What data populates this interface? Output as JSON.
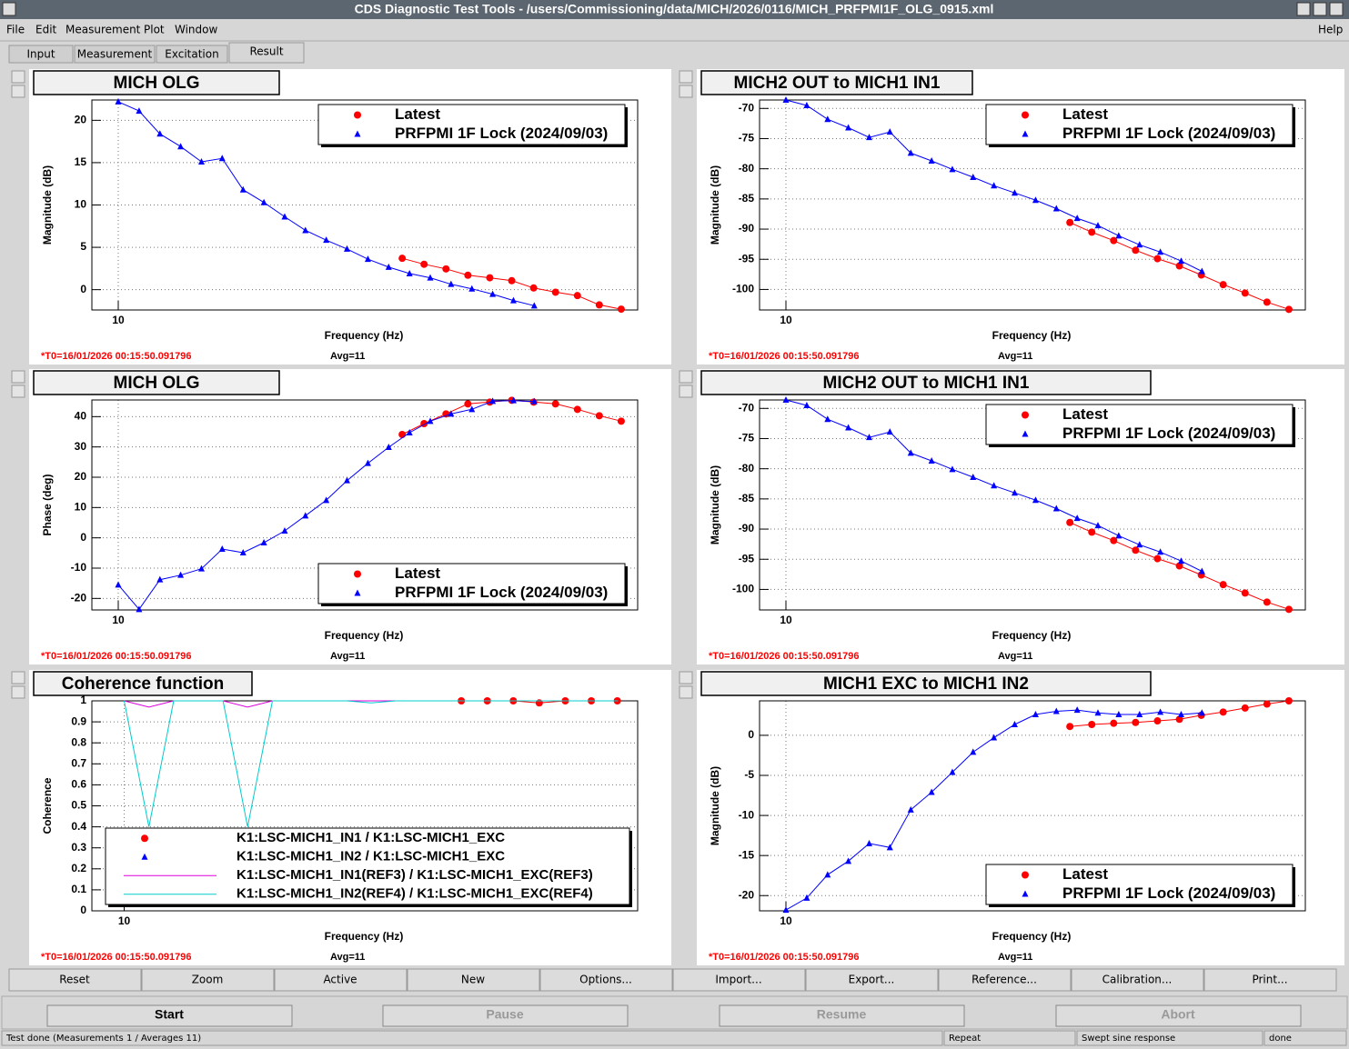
{
  "window": {
    "title": "CDS Diagnostic Test Tools - /users/Commissioning/data/MICH/2026/0116/MICH_PRFPMI1F_OLG_0915.xml",
    "menu": [
      "File",
      "Edit",
      "Measurement",
      "Plot",
      "Window"
    ],
    "help": "Help",
    "tabs": [
      "Input",
      "Measurement",
      "Excitation",
      "Result"
    ],
    "active_tab": "Result",
    "buttons": [
      "Reset",
      "Zoom",
      "Active",
      "New",
      "Options...",
      "Import...",
      "Export...",
      "Reference...",
      "Calibration...",
      "Print..."
    ],
    "run_buttons": [
      {
        "label": "Start",
        "enabled": true
      },
      {
        "label": "Pause",
        "enabled": false
      },
      {
        "label": "Resume",
        "enabled": false
      },
      {
        "label": "Abort",
        "enabled": false
      }
    ],
    "status": [
      "Test done (Measurements 1 / Averages 11)",
      "Repeat",
      "Swept sine response",
      "done"
    ]
  },
  "chart_data": [
    {
      "type": "line",
      "title": "MICH OLG",
      "ylabel": "Magnitude (dB)",
      "xlabel": "Frequency (Hz)",
      "log_x": true,
      "xlim": [
        9.03,
        74.6
      ],
      "xticks": [
        10
      ],
      "ylim": [
        -2.4,
        22.4
      ],
      "yticks": [
        0,
        5,
        10,
        15,
        20
      ],
      "grid": true,
      "legend": "upper right",
      "t0": "*T0=16/01/2026 00:15:50.091796",
      "avg": "Avg=11",
      "series": [
        {
          "name": "Latest",
          "color": "#ff0000",
          "marker": "circle",
          "x": [
            30,
            32.65,
            35.54,
            38.68,
            42.1,
            45.83,
            49.88,
            54.29,
            59.09,
            64.31,
            70
          ],
          "values": [
            3.7,
            3.0,
            2.45,
            1.7,
            1.4,
            1.06,
            0.2,
            -0.3,
            -0.7,
            -1.8,
            -2.3
          ]
        },
        {
          "name": "PRFPMI 1F Lock (2024/09/03)",
          "color": "#0000ff",
          "marker": "triangle",
          "x": [
            10,
            10.84,
            11.75,
            12.73,
            13.8,
            14.95,
            16.21,
            17.57,
            19.04,
            20.63,
            22.36,
            24.23,
            26.27,
            28.47,
            30.86,
            33.44,
            36.24,
            39.28,
            42.57,
            46.14,
            50
          ],
          "values": [
            22.2,
            21.1,
            18.4,
            16.9,
            15.1,
            15.5,
            11.8,
            10.3,
            8.6,
            7.0,
            5.85,
            4.8,
            3.6,
            2.66,
            1.9,
            1.4,
            0.64,
            0.1,
            -0.53,
            -1.28,
            -1.9
          ]
        }
      ]
    },
    {
      "type": "line",
      "title": "MICH2 OUT to MICH1 IN1",
      "ylabel": "Magnitude (dB)",
      "xlabel": "Frequency (Hz)",
      "log_x": true,
      "xlim": [
        9.03,
        74.6
      ],
      "xticks": [
        10
      ],
      "ylim": [
        -103.4,
        -68.6
      ],
      "yticks": [
        -70,
        -75,
        -80,
        -85,
        -90,
        -95,
        -100
      ],
      "grid": true,
      "legend": "upper right",
      "t0": "*T0=16/01/2026 00:15:50.091796",
      "avg": "Avg=11",
      "series": [
        {
          "name": "Latest",
          "color": "#ff0000",
          "marker": "circle",
          "x": [
            30,
            32.65,
            35.54,
            38.68,
            42.1,
            45.83,
            49.88,
            54.29,
            59.09,
            64.31,
            70
          ],
          "values": [
            -88.9,
            -90.5,
            -91.9,
            -93.5,
            -94.9,
            -96.1,
            -97.6,
            -99.2,
            -100.6,
            -102.1,
            -103.3
          ]
        },
        {
          "name": "PRFPMI 1F Lock (2024/09/03)",
          "color": "#0000ff",
          "marker": "triangle",
          "x": [
            10,
            10.84,
            11.75,
            12.73,
            13.8,
            14.95,
            16.21,
            17.57,
            19.04,
            20.63,
            22.36,
            24.23,
            26.27,
            28.47,
            30.86,
            33.44,
            36.24,
            39.28,
            42.57,
            46.14,
            50
          ],
          "values": [
            -68.6,
            -69.5,
            -71.8,
            -73.2,
            -74.8,
            -73.9,
            -77.4,
            -78.7,
            -80.1,
            -81.4,
            -82.8,
            -84.0,
            -85.2,
            -86.6,
            -88.2,
            -89.4,
            -91.1,
            -92.6,
            -93.8,
            -95.3,
            -97.0
          ]
        }
      ]
    },
    {
      "type": "line",
      "title": "MICH OLG",
      "ylabel": "Phase (deg)",
      "xlabel": "Frequency (Hz)",
      "log_x": true,
      "xlim": [
        9.03,
        74.6
      ],
      "xticks": [
        10
      ],
      "ylim": [
        -23.8,
        45.5
      ],
      "yticks": [
        -20,
        -10,
        0,
        10,
        20,
        30,
        40
      ],
      "grid": true,
      "legend": "lower right",
      "t0": "*T0=16/01/2026 00:15:50.091796",
      "avg": "Avg=11",
      "series": [
        {
          "name": "Latest",
          "color": "#ff0000",
          "marker": "circle",
          "x": [
            30,
            32.65,
            35.54,
            38.68,
            42.1,
            45.83,
            49.88,
            54.29,
            59.09,
            64.31,
            70
          ],
          "values": [
            34.1,
            37.7,
            40.9,
            44.2,
            44.8,
            45.4,
            44.8,
            44.2,
            42.4,
            40.3,
            38.5
          ]
        },
        {
          "name": "PRFPMI 1F Lock (2024/09/03)",
          "color": "#0000ff",
          "marker": "triangle",
          "x": [
            10,
            10.84,
            11.75,
            12.73,
            13.8,
            14.95,
            16.21,
            17.57,
            19.04,
            20.63,
            22.36,
            24.23,
            26.27,
            28.47,
            30.86,
            33.44,
            36.24,
            39.28,
            42.57,
            46.14,
            50
          ],
          "values": [
            -15.5,
            -23.6,
            -13.8,
            -12.3,
            -10.2,
            -3.7,
            -4.9,
            -1.6,
            2.3,
            7.3,
            12.4,
            18.9,
            24.6,
            29.9,
            34.7,
            38.5,
            40.9,
            42.4,
            45.1,
            45.3,
            45.0
          ]
        }
      ]
    },
    {
      "type": "line",
      "title": "MICH2 OUT to MICH1 IN1",
      "ylabel": "Magnitude (dB)",
      "xlabel": "Frequency (Hz)",
      "log_x": true,
      "xlim": [
        9.03,
        74.6
      ],
      "xticks": [
        10
      ],
      "ylim": [
        -103.4,
        -68.6
      ],
      "yticks": [
        -70,
        -75,
        -80,
        -85,
        -90,
        -95,
        -100
      ],
      "grid": true,
      "legend": "upper right",
      "t0": "*T0=16/01/2026 00:15:50.091796",
      "avg": "Avg=11",
      "series": [
        {
          "name": "Latest",
          "color": "#ff0000",
          "marker": "circle",
          "x": [
            30,
            32.65,
            35.54,
            38.68,
            42.1,
            45.83,
            49.88,
            54.29,
            59.09,
            64.31,
            70
          ],
          "values": [
            -88.9,
            -90.5,
            -91.9,
            -93.5,
            -94.9,
            -96.1,
            -97.6,
            -99.2,
            -100.6,
            -102.1,
            -103.3
          ]
        },
        {
          "name": "PRFPMI 1F Lock (2024/09/03)",
          "color": "#0000ff",
          "marker": "triangle",
          "x": [
            10,
            10.84,
            11.75,
            12.73,
            13.8,
            14.95,
            16.21,
            17.57,
            19.04,
            20.63,
            22.36,
            24.23,
            26.27,
            28.47,
            30.86,
            33.44,
            36.24,
            39.28,
            42.57,
            46.14,
            50
          ],
          "values": [
            -68.6,
            -69.5,
            -71.8,
            -73.2,
            -74.8,
            -73.9,
            -77.4,
            -78.7,
            -80.1,
            -81.4,
            -82.8,
            -84.0,
            -85.2,
            -86.6,
            -88.2,
            -89.4,
            -91.1,
            -92.6,
            -93.8,
            -95.3,
            -97.0
          ]
        }
      ]
    },
    {
      "type": "line",
      "title": "Coherence function",
      "ylabel": "Coherence",
      "xlabel": "Frequency (Hz)",
      "log_x": true,
      "xlim": [
        9.0,
        53.3
      ],
      "xticks": [
        10
      ],
      "ylim": [
        0,
        1
      ],
      "yticks": [
        0,
        0.1,
        0.2,
        0.3,
        0.4,
        0.5,
        0.6,
        0.7,
        0.8,
        0.9,
        1
      ],
      "grid": true,
      "legend": "lower center",
      "t0": "*T0=16/01/2026 00:15:50.091796",
      "avg": "Avg=11",
      "series": [
        {
          "name": "K1:LSC-MICH1_IN1 / K1:LSC-MICH1_EXC",
          "color": "#ff0000",
          "marker": "circle",
          "x": [
            30,
            32.65,
            35.54,
            38.68,
            42.1,
            45.83,
            49.88
          ],
          "values": [
            1,
            1,
            1,
            0.99,
            1,
            1,
            1
          ]
        },
        {
          "name": "K1:LSC-MICH1_IN2 / K1:LSC-MICH1_EXC",
          "color": "#0000ff",
          "marker": "triangle",
          "x": [],
          "values": []
        },
        {
          "name": "K1:LSC-MICH1_IN1(REF3) / K1:LSC-MICH1_EXC(REF3)",
          "color": "#dd00dd",
          "marker": "line",
          "x": [
            10,
            10.84,
            11.75,
            12.73,
            13.8,
            14.95,
            16.21,
            17.57,
            19.04,
            20.63,
            22.36,
            24.23,
            26.27,
            28.47,
            30.86,
            33.44,
            36.24,
            39.28,
            42.57,
            46.14,
            50
          ],
          "values": [
            1,
            0.97,
            1,
            1,
            1,
            0.97,
            1,
            1,
            1,
            1,
            1,
            1,
            1,
            1,
            1,
            1,
            1,
            1,
            1,
            1,
            1
          ]
        },
        {
          "name": "K1:LSC-MICH1_IN2(REF4) / K1:LSC-MICH1_EXC(REF4)",
          "color": "#00cccc",
          "marker": "line",
          "x": [
            10,
            10.84,
            11.75,
            12.73,
            13.8,
            14.95,
            16.21,
            17.57,
            19.04,
            20.63,
            22.36,
            24.23,
            26.27,
            28.47,
            30.86,
            33.44,
            36.24,
            39.28,
            42.57,
            46.14,
            50
          ],
          "values": [
            1,
            0.4,
            1,
            1,
            1,
            0.4,
            1,
            1,
            1,
            1,
            0.99,
            1,
            1,
            1,
            1,
            1,
            1,
            1,
            1,
            1,
            1
          ]
        }
      ]
    },
    {
      "type": "line",
      "title": "MICH1 EXC to MICH1 IN2",
      "ylabel": "Magnitude (dB)",
      "xlabel": "Frequency (Hz)",
      "log_x": true,
      "xlim": [
        9.03,
        74.6
      ],
      "xticks": [
        10
      ],
      "ylim": [
        -21.9,
        4.3
      ],
      "yticks": [
        0,
        -5,
        -10,
        -15,
        -20
      ],
      "grid": true,
      "legend": "lower right",
      "t0": "*T0=16/01/2026 00:15:50.091796",
      "avg": "Avg=11",
      "series": [
        {
          "name": "Latest",
          "color": "#ff0000",
          "marker": "circle",
          "x": [
            30,
            32.65,
            35.54,
            38.68,
            42.1,
            45.83,
            49.88,
            54.29,
            59.09,
            64.31,
            70
          ],
          "values": [
            1.1,
            1.35,
            1.5,
            1.6,
            1.8,
            2.0,
            2.5,
            2.9,
            3.4,
            3.9,
            4.3
          ]
        },
        {
          "name": "PRFPMI 1F Lock (2024/09/03)",
          "color": "#0000ff",
          "marker": "triangle",
          "x": [
            10,
            10.84,
            11.75,
            12.73,
            13.8,
            14.95,
            16.21,
            17.57,
            19.04,
            20.63,
            22.36,
            24.23,
            26.27,
            28.47,
            30.86,
            33.44,
            36.24,
            39.28,
            42.57,
            46.14,
            50
          ],
          "values": [
            -21.8,
            -20.3,
            -17.4,
            -15.7,
            -13.5,
            -14.0,
            -9.3,
            -7.1,
            -4.6,
            -2.1,
            -0.3,
            1.35,
            2.6,
            3.0,
            3.15,
            2.8,
            2.6,
            2.6,
            2.9,
            2.6,
            2.8
          ]
        }
      ]
    }
  ]
}
